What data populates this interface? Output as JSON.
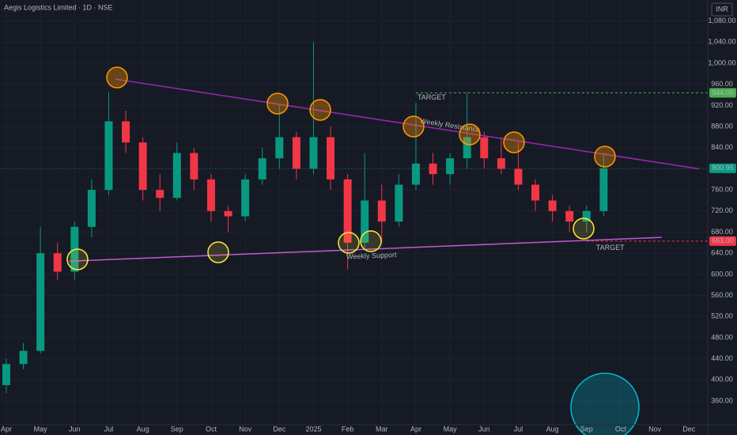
{
  "chart_data": {
    "type": "candlestick",
    "title": "Aegis Logistics Limited · 1D · NSE",
    "currency": "INR",
    "x": [
      0,
      0.5,
      1,
      1.5,
      2,
      2.5,
      3,
      3.5,
      4,
      4.5,
      5,
      5.5,
      6,
      6.5,
      7,
      7.5,
      8,
      8.5,
      9,
      9.5,
      10,
      10.5,
      11,
      11.5,
      12,
      12.5,
      13,
      13.5,
      14,
      14.5,
      15,
      15.5,
      16,
      16.5,
      17,
      17.5
    ],
    "open": [
      390,
      430,
      455,
      640,
      605,
      690,
      760,
      890,
      850,
      760,
      745,
      830,
      780,
      720,
      710,
      780,
      820,
      860,
      800,
      860,
      780,
      660,
      740,
      700,
      770,
      810,
      790,
      820,
      860,
      820,
      800,
      770,
      740,
      720,
      700,
      720
    ],
    "high": [
      440,
      470,
      690,
      660,
      700,
      780,
      945,
      910,
      860,
      790,
      850,
      840,
      790,
      730,
      790,
      840,
      920,
      870,
      1040,
      880,
      790,
      830,
      770,
      790,
      925,
      830,
      830,
      945,
      870,
      860,
      850,
      780,
      750,
      730,
      730,
      830
    ],
    "low": [
      375,
      420,
      450,
      590,
      590,
      670,
      750,
      830,
      740,
      720,
      740,
      760,
      700,
      680,
      700,
      770,
      800,
      780,
      790,
      760,
      610,
      650,
      660,
      690,
      760,
      770,
      770,
      800,
      800,
      790,
      760,
      720,
      700,
      680,
      680,
      710
    ],
    "close": [
      430,
      455,
      640,
      605,
      690,
      760,
      890,
      850,
      760,
      745,
      830,
      780,
      720,
      710,
      780,
      820,
      860,
      800,
      860,
      780,
      660,
      740,
      700,
      770,
      810,
      790,
      820,
      860,
      820,
      800,
      770,
      740,
      720,
      700,
      720,
      800.95
    ],
    "up_color": "#089981",
    "down_color": "#f23645",
    "xlim": [
      -0.185,
      20.55
    ],
    "ylim": [
      315,
      1120
    ],
    "xticks": [
      {
        "value": 0,
        "label": "Apr"
      },
      {
        "value": 1,
        "label": "May"
      },
      {
        "value": 2,
        "label": "Jun"
      },
      {
        "value": 3,
        "label": "Jul"
      },
      {
        "value": 4,
        "label": "Aug"
      },
      {
        "value": 5,
        "label": "Sep"
      },
      {
        "value": 6,
        "label": "Oct"
      },
      {
        "value": 7,
        "label": "Nov"
      },
      {
        "value": 8,
        "label": "Dec"
      },
      {
        "value": 9,
        "label": "2025"
      },
      {
        "value": 10,
        "label": "Feb"
      },
      {
        "value": 11,
        "label": "Mar"
      },
      {
        "value": 12,
        "label": "Apr"
      },
      {
        "value": 13,
        "label": "May"
      },
      {
        "value": 14,
        "label": "Jun"
      },
      {
        "value": 15,
        "label": "Jul"
      },
      {
        "value": 16,
        "label": "Aug"
      },
      {
        "value": 17,
        "label": "Sep"
      },
      {
        "value": 18,
        "label": "Oct"
      },
      {
        "value": 19,
        "label": "Nov"
      },
      {
        "value": 20,
        "label": "Dec"
      }
    ],
    "yticks": [
      {
        "value": 360,
        "label": "360.00"
      },
      {
        "value": 400,
        "label": "400.00"
      },
      {
        "value": 440,
        "label": "440.00"
      },
      {
        "value": 480,
        "label": "480.00"
      },
      {
        "value": 520,
        "label": "520.00"
      },
      {
        "value": 560,
        "label": "560.00"
      },
      {
        "value": 600,
        "label": "600.00"
      },
      {
        "value": 640,
        "label": "640.00"
      },
      {
        "value": 680,
        "label": "680.00"
      },
      {
        "value": 720,
        "label": "720.00"
      },
      {
        "value": 760,
        "label": "760.00"
      },
      {
        "value": 800,
        "label": "800.00"
      },
      {
        "value": 840,
        "label": "840.00"
      },
      {
        "value": 880,
        "label": "880.00"
      },
      {
        "value": 920,
        "label": "920.00"
      },
      {
        "value": 960,
        "label": "960.00"
      },
      {
        "value": 1000,
        "label": "1,000.00"
      },
      {
        "value": 1040,
        "label": "1,040.00"
      },
      {
        "value": 1080,
        "label": "1,080.00"
      }
    ],
    "grid": true,
    "trendlines": [
      {
        "name": "Weekly Resistance",
        "x": [
          3.2,
          20.3
        ],
        "y": [
          970,
          800
        ],
        "color": "#9c27b0"
      },
      {
        "name": "Weekly Support",
        "x": [
          1.85,
          19.2
        ],
        "y": [
          625,
          670
        ],
        "color": "#c05bd0"
      }
    ],
    "levels": [
      {
        "label": "TARGET",
        "value": {
          "value": 944,
          "label": "944.00"
        },
        "x_start": 12,
        "color": "#4caf50"
      },
      {
        "label": "TARGET",
        "value": {
          "value": 663,
          "label": "663.00"
        },
        "x_start": 17,
        "color": "#f23645"
      }
    ],
    "last_price": {
      "value": 800.95,
      "label": "800.95"
    }
  }
}
